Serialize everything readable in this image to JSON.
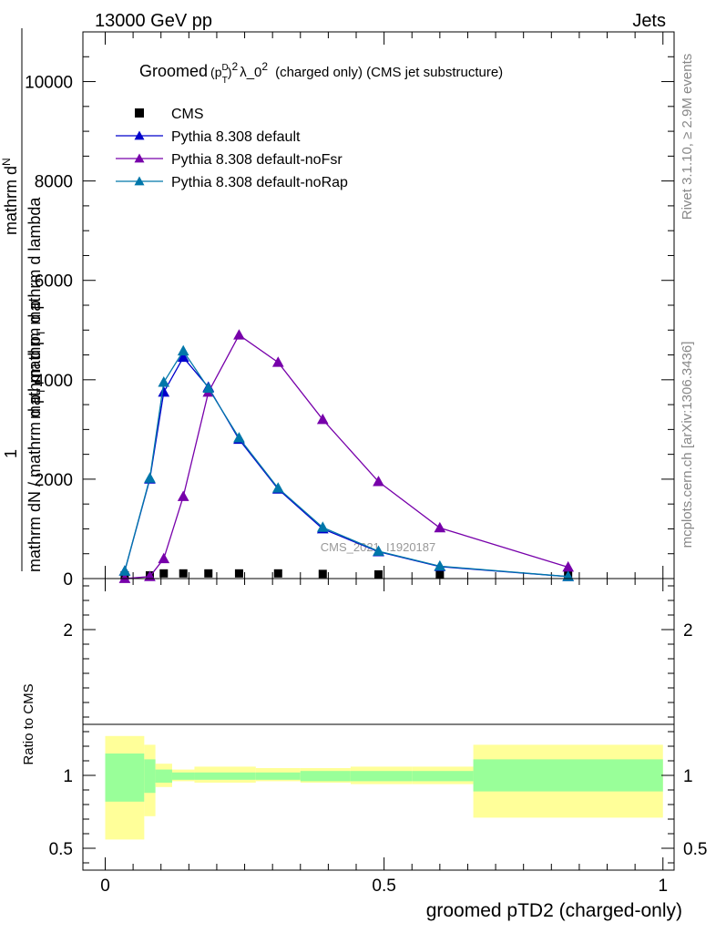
{
  "header": {
    "left": "13000 GeV pp",
    "right": "Jets"
  },
  "side_labels": {
    "rivet": "Rivet 3.1.10, ≥ 2.9M events",
    "mcplots": "mcplots.cern.ch [arXiv:1306.3436]"
  },
  "watermark": "CMS_2021_I1920187",
  "colors": {
    "cms": "#000000",
    "default": "#0000cc",
    "noFsr": "#7700aa",
    "noRap": "#0077aa",
    "band_stat": "#99ff99",
    "band_total": "#ffff99"
  },
  "chart_data": [
    {
      "type": "line",
      "title": {
        "prefix": "Groomed",
        "p": "(p",
        "sup_d": "D",
        "sub_t": "T",
        "close": ")",
        "sup_2": "2",
        "lam": "λ_0",
        "sup_2b": "2",
        "suffix": "(charged only) (CMS jet substructure)"
      },
      "ylabel": {
        "one": "1",
        "frac_num_top": "mathrm d",
        "frac_num_N": "N",
        "frac_num_bottom": "mathrm d p",
        "frac_num_T": "T",
        "frac_num_end": " mathrm d lambda",
        "frac_den": "mathrm dN / mathrm d p",
        "frac_den_T": "T",
        "frac_den_end": " mathrm d p"
      },
      "xlim": [
        -0.04,
        1.02
      ],
      "ylim": [
        0,
        11000
      ],
      "yticks": [
        0,
        2000,
        4000,
        6000,
        8000,
        10000
      ],
      "ytick_labels": [
        "0",
        "2000",
        "4000",
        "6000",
        "8000",
        "10000"
      ],
      "legend_position": "top-left",
      "series": [
        {
          "name": "CMS",
          "marker": "square",
          "x": [
            0.035,
            0.08,
            0.105,
            0.14,
            0.185,
            0.24,
            0.31,
            0.39,
            0.49,
            0.6,
            0.83
          ],
          "y": [
            0,
            0,
            40,
            40,
            40,
            40,
            40,
            30,
            20,
            10,
            0
          ]
        },
        {
          "name": "Pythia 8.308 default",
          "marker": "triangle",
          "x": [
            0.035,
            0.08,
            0.105,
            0.14,
            0.185,
            0.24,
            0.31,
            0.39,
            0.49,
            0.6,
            0.83
          ],
          "y": [
            150,
            2000,
            3750,
            4450,
            3850,
            2800,
            1800,
            1000,
            540,
            240,
            40
          ]
        },
        {
          "name": "Pythia 8.308 default-noFsr",
          "marker": "triangle",
          "x": [
            0.035,
            0.08,
            0.105,
            0.14,
            0.185,
            0.24,
            0.31,
            0.39,
            0.49,
            0.6,
            0.83
          ],
          "y": [
            0,
            40,
            400,
            1650,
            3750,
            4900,
            4350,
            3200,
            1950,
            1020,
            230
          ]
        },
        {
          "name": "Pythia 8.308 default-noRap",
          "marker": "triangle",
          "x": [
            0.035,
            0.08,
            0.105,
            0.14,
            0.185,
            0.24,
            0.31,
            0.39,
            0.49,
            0.6,
            0.83
          ],
          "y": [
            150,
            2020,
            3950,
            4580,
            3830,
            2830,
            1820,
            1030,
            550,
            250,
            40
          ]
        }
      ]
    },
    {
      "type": "area",
      "ylabel": "Ratio to CMS",
      "xlabel": "groomed pTD2 (charged-only)",
      "xlim": [
        -0.04,
        1.02
      ],
      "ylim": [
        0.35,
        2.35
      ],
      "xticks": [
        0,
        0.5,
        1
      ],
      "xtick_labels": [
        "0",
        "0.5",
        "1"
      ],
      "yticks": [
        0.5,
        1,
        2
      ],
      "ytick_labels": [
        "0.5",
        "1",
        "2"
      ],
      "bins": [
        {
          "lo": 0.0,
          "hi": 0.07,
          "stat_lo": 0.82,
          "stat_hi": 1.15,
          "tot_lo": 0.56,
          "tot_hi": 1.27
        },
        {
          "lo": 0.07,
          "hi": 0.09,
          "stat_lo": 0.88,
          "stat_hi": 1.11,
          "tot_lo": 0.72,
          "tot_hi": 1.21
        },
        {
          "lo": 0.09,
          "hi": 0.12,
          "stat_lo": 0.95,
          "stat_hi": 1.04,
          "tot_lo": 0.92,
          "tot_hi": 1.08
        },
        {
          "lo": 0.12,
          "hi": 0.16,
          "stat_lo": 0.97,
          "stat_hi": 1.02,
          "tot_lo": 0.96,
          "tot_hi": 1.04
        },
        {
          "lo": 0.16,
          "hi": 0.27,
          "stat_lo": 0.97,
          "stat_hi": 1.02,
          "tot_lo": 0.95,
          "tot_hi": 1.06
        },
        {
          "lo": 0.27,
          "hi": 0.35,
          "stat_lo": 0.97,
          "stat_hi": 1.02,
          "tot_lo": 0.96,
          "tot_hi": 1.05
        },
        {
          "lo": 0.35,
          "hi": 0.44,
          "stat_lo": 0.96,
          "stat_hi": 1.03,
          "tot_lo": 0.95,
          "tot_hi": 1.05
        },
        {
          "lo": 0.44,
          "hi": 0.55,
          "stat_lo": 0.96,
          "stat_hi": 1.03,
          "tot_lo": 0.94,
          "tot_hi": 1.06
        },
        {
          "lo": 0.55,
          "hi": 0.66,
          "stat_lo": 0.96,
          "stat_hi": 1.03,
          "tot_lo": 0.94,
          "tot_hi": 1.06
        },
        {
          "lo": 0.66,
          "hi": 1.0,
          "stat_lo": 0.89,
          "stat_hi": 1.11,
          "tot_lo": 0.71,
          "tot_hi": 1.21
        }
      ]
    }
  ]
}
